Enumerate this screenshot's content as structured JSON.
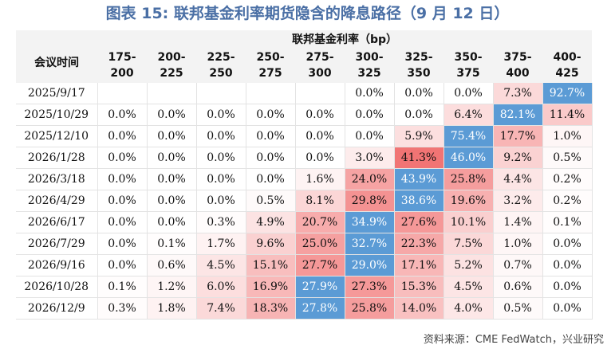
{
  "title": "图表 15: 联邦基金利率期货隐含的降息路径（9 月 12 日）",
  "table": {
    "group_header": "联邦基金利率（bp）",
    "row_header": "会议时间",
    "columns": [
      {
        "top": "175-",
        "bottom": "200"
      },
      {
        "top": "200-",
        "bottom": "225"
      },
      {
        "top": "225-",
        "bottom": "250"
      },
      {
        "top": "250-",
        "bottom": "275"
      },
      {
        "top": "275-",
        "bottom": "300"
      },
      {
        "top": "300-",
        "bottom": "325"
      },
      {
        "top": "325-",
        "bottom": "350"
      },
      {
        "top": "350-",
        "bottom": "375"
      },
      {
        "top": "375-",
        "bottom": "400"
      },
      {
        "top": "400-",
        "bottom": "425"
      }
    ],
    "rows": [
      {
        "date": "2025/9/17",
        "values": [
          "",
          "",
          "",
          "",
          "",
          "0.0%",
          "0.0%",
          "0.0%",
          "7.3%",
          "92.7%"
        ]
      },
      {
        "date": "2025/10/29",
        "values": [
          "0.0%",
          "0.0%",
          "0.0%",
          "0.0%",
          "0.0%",
          "0.0%",
          "0.0%",
          "6.4%",
          "82.1%",
          "11.4%"
        ]
      },
      {
        "date": "2025/12/10",
        "values": [
          "0.0%",
          "0.0%",
          "0.0%",
          "0.0%",
          "0.0%",
          "0.0%",
          "5.9%",
          "75.4%",
          "17.7%",
          "1.0%"
        ]
      },
      {
        "date": "2026/1/28",
        "values": [
          "0.0%",
          "0.0%",
          "0.0%",
          "0.0%",
          "0.0%",
          "3.0%",
          "41.3%",
          "46.0%",
          "9.2%",
          "0.5%"
        ]
      },
      {
        "date": "2026/3/18",
        "values": [
          "0.0%",
          "0.0%",
          "0.0%",
          "0.0%",
          "1.6%",
          "24.0%",
          "43.9%",
          "25.8%",
          "4.4%",
          "0.2%"
        ]
      },
      {
        "date": "2026/4/29",
        "values": [
          "0.0%",
          "0.0%",
          "0.0%",
          "0.5%",
          "8.1%",
          "29.8%",
          "38.6%",
          "19.6%",
          "3.2%",
          "0.2%"
        ]
      },
      {
        "date": "2026/6/17",
        "values": [
          "0.0%",
          "0.0%",
          "0.3%",
          "4.9%",
          "20.7%",
          "34.9%",
          "27.6%",
          "10.1%",
          "1.4%",
          "0.1%"
        ]
      },
      {
        "date": "2026/7/29",
        "values": [
          "0.0%",
          "0.1%",
          "1.7%",
          "9.6%",
          "25.0%",
          "32.7%",
          "22.3%",
          "7.5%",
          "1.0%",
          "0.0%"
        ]
      },
      {
        "date": "2026/9/16",
        "values": [
          "0.0%",
          "0.6%",
          "4.5%",
          "15.1%",
          "27.7%",
          "29.0%",
          "17.1%",
          "5.2%",
          "0.7%",
          "0.0%"
        ]
      },
      {
        "date": "2026/10/28",
        "values": [
          "0.1%",
          "1.2%",
          "6.0%",
          "16.9%",
          "27.9%",
          "27.3%",
          "15.3%",
          "4.5%",
          "0.6%",
          "0.0%"
        ]
      },
      {
        "date": "2026/12/9",
        "values": [
          "0.3%",
          "1.8%",
          "7.4%",
          "18.3%",
          "27.8%",
          "25.8%",
          "14.0%",
          "4.0%",
          "0.5%",
          "0.0%"
        ]
      }
    ]
  },
  "colors": {
    "title": "#4a6fa5",
    "max_cell": "#5b9bd5",
    "heat_high": "#f06b6b",
    "heat_low": "#ffffff"
  },
  "source": "资料来源：CME FedWatch，兴业研究"
}
